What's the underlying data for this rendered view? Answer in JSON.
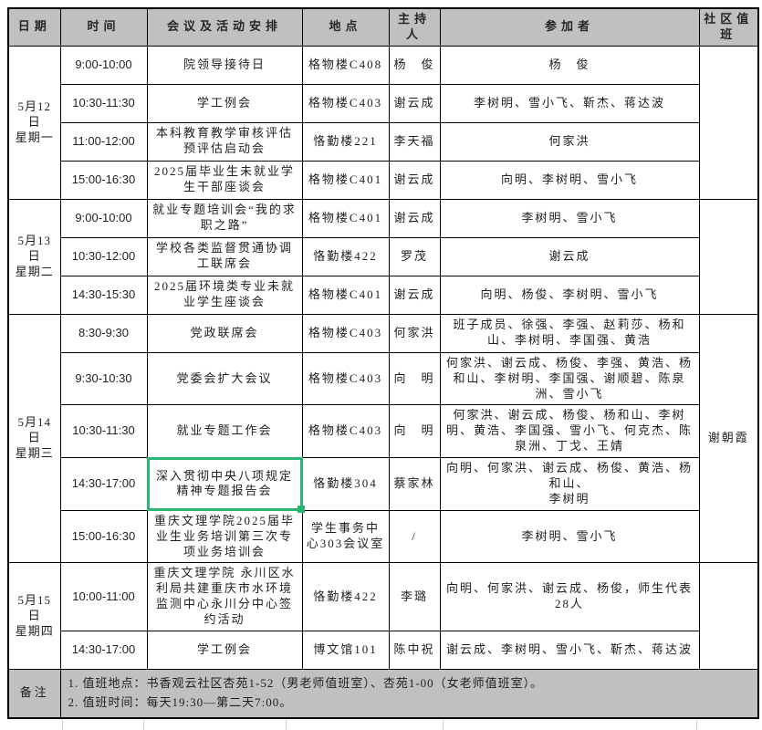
{
  "colors": {
    "header_bg": "#c0c0c0",
    "highlight": "#2bb673",
    "border": "#000000"
  },
  "table": {
    "columns": [
      "日期",
      "时间",
      "会议及活动安排",
      "地点",
      "主持人",
      "参加者",
      "社区值班"
    ],
    "groups": [
      {
        "date": "5月12日\n星期一",
        "duty": "",
        "rows": [
          {
            "time": "9:00-10:00",
            "meeting": "院领导接待日",
            "location": "格物楼C408",
            "host": "杨　俊",
            "participants": "杨　俊",
            "highlight": false
          },
          {
            "time": "10:30-11:30",
            "meeting": "学工例会",
            "location": "格物楼C403",
            "host": "谢云成",
            "participants": "李树明、雪小飞、靳杰、蒋达波",
            "highlight": false
          },
          {
            "time": "11:00-12:00",
            "meeting": "本科教育教学审核评估预评估启动会",
            "location": "恪勤楼221",
            "host": "李天福",
            "participants": "何家洪",
            "highlight": false
          },
          {
            "time": "15:00-16:30",
            "meeting": "2025届毕业生未就业学生干部座谈会",
            "location": "格物楼C401",
            "host": "谢云成",
            "participants": "向明、李树明、雪小飞",
            "highlight": false
          }
        ]
      },
      {
        "date": "5月13日\n星期二",
        "duty": "",
        "rows": [
          {
            "time": "9:00-10:00",
            "meeting": "就业专题培训会“我的求职之路”",
            "location": "格物楼C401",
            "host": "谢云成",
            "participants": "李树明、雪小飞",
            "highlight": false
          },
          {
            "time": "10:30-12:00",
            "meeting": "学校各类监督贯通协调工联席会",
            "location": "恪勤楼422",
            "host": "罗茂",
            "participants": "谢云成",
            "highlight": false
          },
          {
            "time": "14:30-15:30",
            "meeting": "2025届环境类专业未就业学生座谈会",
            "location": "格物楼C401",
            "host": "谢云成",
            "participants": "向明、杨俊、李树明、雪小飞",
            "highlight": false
          }
        ]
      },
      {
        "date": "5月14日\n星期三",
        "duty": "谢朝霞",
        "rows": [
          {
            "time": "8:30-9:30",
            "meeting": "党政联席会",
            "location": "格物楼C403",
            "host": "何家洪",
            "participants": "班子成员、徐强、李强、赵莉莎、杨和山、李树明、李国强、黄浩",
            "highlight": false
          },
          {
            "time": "9:30-10:30",
            "meeting": "党委会扩大会议",
            "location": "格物楼C403",
            "host": "向　明",
            "participants": "何家洪、谢云成、杨俊、李强、黄浩、杨和山、李树明、李国强、谢顺碧、陈泉洲、雪小飞",
            "highlight": false
          },
          {
            "time": "10:30-11:30",
            "meeting": "就业专题工作会",
            "location": "格物楼C403",
            "host": "向　明",
            "participants": "何家洪、谢云成、杨俊、杨和山、李树明、黄浩、李国强、雪小飞、何克杰、陈泉洲、丁戈、王婧",
            "highlight": false
          },
          {
            "time": "14:30-17:00",
            "meeting": "深入贯彻中央八项规定精神专题报告会",
            "location": "恪勤楼304",
            "host": "蔡家林",
            "participants": "向明、何家洪、谢云成、杨俊、黄浩、杨和山、\n李树明",
            "highlight": true
          },
          {
            "time": "15:00-16:30",
            "meeting": "重庆文理学院2025届毕业生业务培训第三次专项业务培训会",
            "location": "学生事务中心303会议室",
            "host": "/",
            "participants": "李树明、雪小飞",
            "highlight": false
          }
        ]
      },
      {
        "date": "5月15日\n星期四",
        "duty": "",
        "rows": [
          {
            "time": "10:00-11:00",
            "meeting": "重庆文理学院 永川区水利局共建重庆市水环境监测中心永川分中心签约活动",
            "location": "恪勤楼422",
            "host": "李璐",
            "participants": "向明、何家洪、谢云成、杨俊，师生代表28人",
            "highlight": false
          },
          {
            "time": "14:30-17:00",
            "meeting": "学工例会",
            "location": "博文馆101",
            "host": "陈中祝",
            "participants": "谢云成、李树明、雪小飞、靳杰、蒋达波",
            "highlight": false
          }
        ]
      }
    ],
    "note_label": "备注",
    "notes": [
      "1.  值班地点：书香观云社区杏苑1-52（男老师值班室）、杏苑1-00（女老师值班室）。",
      "2.  值班时间：每天19:30—第二天7:00。"
    ]
  }
}
